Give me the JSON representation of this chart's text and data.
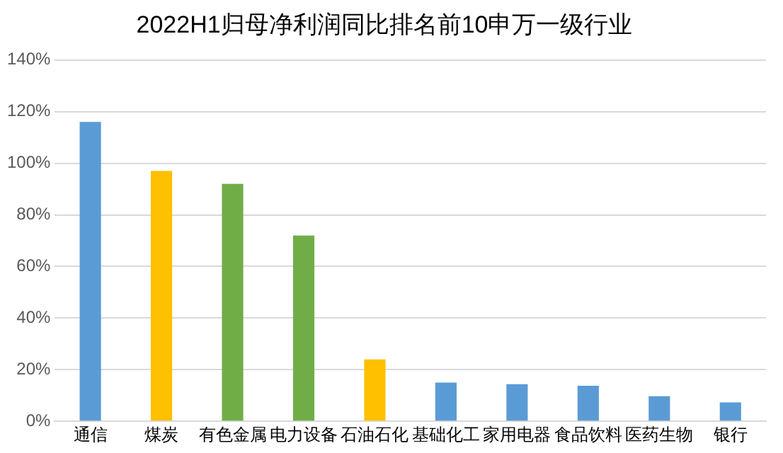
{
  "chart_data": {
    "type": "bar",
    "title": "2022H1归母净利润同比排名前10申万一级行业",
    "categories": [
      "通信",
      "煤炭",
      "有色金属",
      "电力设备",
      "石油石化",
      "基础化工",
      "家用电器",
      "食品饮料",
      "医药生物",
      "银行"
    ],
    "values": [
      116,
      97,
      92,
      72,
      24,
      15,
      14.4,
      13.8,
      9.7,
      7.3
    ],
    "colors": [
      "#5b9bd5",
      "#ffc000",
      "#70ad47",
      "#70ad47",
      "#ffc000",
      "#5b9bd5",
      "#5b9bd5",
      "#5b9bd5",
      "#5b9bd5",
      "#5b9bd5"
    ],
    "ylim": [
      0,
      140
    ],
    "yticks": [
      {
        "value": 0,
        "label": "0%"
      },
      {
        "value": 20,
        "label": "20%"
      },
      {
        "value": 40,
        "label": "40%"
      },
      {
        "value": 60,
        "label": "60%"
      },
      {
        "value": 80,
        "label": "80%"
      },
      {
        "value": 100,
        "label": "100%"
      },
      {
        "value": 120,
        "label": "120%"
      },
      {
        "value": 140,
        "label": "140%"
      }
    ],
    "grid": "y",
    "legend": false
  }
}
